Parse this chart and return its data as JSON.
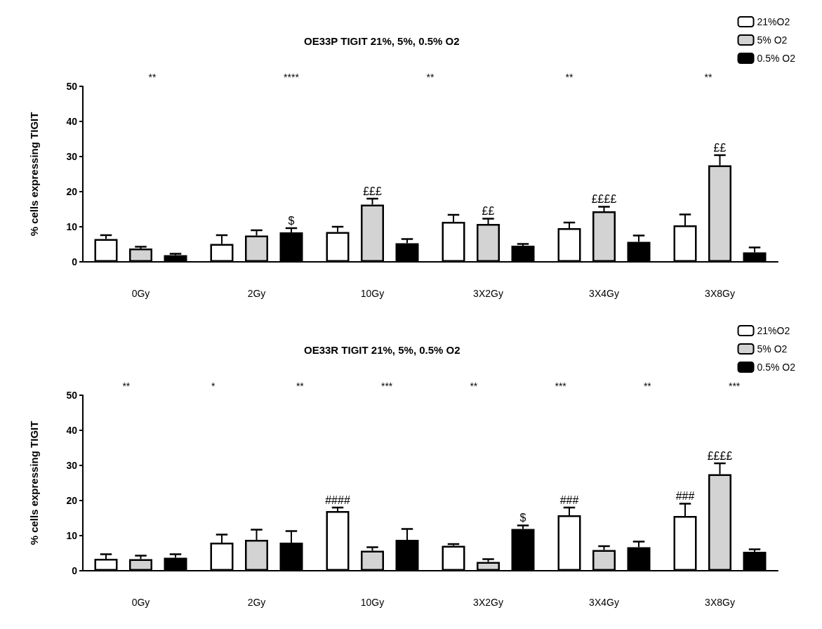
{
  "chart_data": [
    {
      "type": "bar",
      "title": "OE33P TIGIT 21%, 5%, 0.5% O2",
      "ylabel": "% cells expressing TIGIT",
      "categories": [
        "0Gy",
        "2Gy",
        "10Gy",
        "3X2Gy",
        "3X4Gy",
        "3X8Gy"
      ],
      "ylim": [
        0,
        50
      ],
      "yticks": [
        0,
        10,
        20,
        30,
        40,
        50
      ],
      "grid": false,
      "legend": "top right",
      "series": [
        {
          "name": "21%O2",
          "color": "#ffffff",
          "values": [
            6.5,
            5.1,
            8.5,
            11.4,
            9.6,
            10.4
          ],
          "errors": [
            1.1,
            2.5,
            1.5,
            2.0,
            1.6,
            3.1
          ],
          "value_labels": [
            null,
            null,
            null,
            null,
            null,
            null
          ]
        },
        {
          "name": "5% O2",
          "color": "#d3d3d3",
          "values": [
            3.8,
            7.5,
            16.3,
            10.8,
            14.4,
            27.5
          ],
          "errors": [
            0.5,
            1.5,
            1.7,
            1.5,
            1.3,
            2.9
          ],
          "value_labels": [
            null,
            null,
            "£££",
            "££",
            "££££",
            "££"
          ]
        },
        {
          "name": "0.5% O2",
          "color": "#000000",
          "values": [
            1.9,
            8.4,
            5.3,
            4.6,
            5.7,
            2.7
          ],
          "errors": [
            0.4,
            1.2,
            1.2,
            0.5,
            1.8,
            1.4
          ],
          "value_labels": [
            null,
            "$",
            null,
            null,
            null,
            null
          ]
        }
      ],
      "annotations": [
        "**",
        "****",
        "**",
        "**",
        "**"
      ]
    },
    {
      "type": "bar",
      "title": "OE33R TIGIT 21%, 5%, 0.5% O2",
      "ylabel": "% cells expressing TIGIT",
      "categories": [
        "0Gy",
        "2Gy",
        "10Gy",
        "3X2Gy",
        "3X4Gy",
        "3X8Gy"
      ],
      "ylim": [
        0,
        50
      ],
      "yticks": [
        0,
        10,
        20,
        30,
        40,
        50
      ],
      "grid": false,
      "legend": "top right",
      "series": [
        {
          "name": "21%O2",
          "color": "#ffffff",
          "values": [
            3.4,
            8.0,
            17.0,
            7.1,
            15.8,
            15.6
          ],
          "errors": [
            1.3,
            2.3,
            1.0,
            0.5,
            2.2,
            3.5
          ],
          "value_labels": [
            null,
            null,
            "####",
            null,
            "###",
            "###"
          ]
        },
        {
          "name": "5% O2",
          "color": "#d3d3d3",
          "values": [
            3.3,
            8.8,
            5.7,
            2.5,
            5.9,
            27.5
          ],
          "errors": [
            1.0,
            2.9,
            1.0,
            0.8,
            1.1,
            3.1
          ],
          "value_labels": [
            null,
            null,
            null,
            null,
            null,
            "££££"
          ]
        },
        {
          "name": "0.5% O2",
          "color": "#000000",
          "values": [
            3.7,
            8.0,
            8.8,
            11.9,
            6.7,
            5.4
          ],
          "errors": [
            1.0,
            3.3,
            3.1,
            1.0,
            1.6,
            0.7
          ],
          "value_labels": [
            null,
            null,
            null,
            "$",
            null,
            null
          ]
        }
      ],
      "annotations": [
        "**",
        "*",
        "**",
        "***",
        "**",
        "***",
        "**",
        "***"
      ]
    }
  ]
}
